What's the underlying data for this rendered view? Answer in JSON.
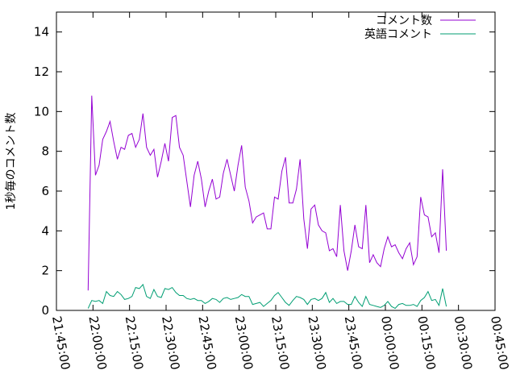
{
  "chart_data": {
    "type": "line",
    "ylabel": "1秒毎のコメント数",
    "xlabel": "",
    "title": "",
    "ylim": [
      0,
      15
    ],
    "xlim": [
      "21:45:00",
      "00:45:00"
    ],
    "yticks": [
      0,
      2,
      4,
      6,
      8,
      10,
      12,
      14
    ],
    "xticks": [
      "21:45:00",
      "22:00:00",
      "22:15:00",
      "22:30:00",
      "22:45:00",
      "23:00:00",
      "23:15:00",
      "23:30:00",
      "23:45:00",
      "00:00:00",
      "00:15:00",
      "00:30:00",
      "00:45:00"
    ],
    "grid": false,
    "legend_position": "top-right",
    "x_start": "21:58:00",
    "x_step_minutes": 1.5,
    "series": [
      {
        "name": "コメント数",
        "color": "#9400d3",
        "values": [
          1.0,
          10.8,
          6.8,
          7.3,
          8.6,
          9.0,
          9.5,
          8.5,
          7.6,
          8.2,
          8.1,
          8.8,
          8.9,
          8.2,
          8.6,
          9.9,
          8.2,
          7.8,
          8.1,
          6.7,
          7.5,
          8.4,
          7.5,
          9.7,
          9.8,
          8.2,
          7.8,
          6.5,
          5.2,
          6.8,
          7.5,
          6.6,
          5.2,
          6.0,
          6.6,
          5.6,
          5.7,
          6.9,
          7.6,
          6.8,
          6.0,
          7.3,
          8.3,
          6.2,
          5.5,
          4.4,
          4.7,
          4.8,
          4.9,
          4.1,
          4.1,
          5.7,
          5.6,
          7.0,
          7.7,
          5.4,
          5.4,
          6.1,
          7.6,
          4.6,
          3.1,
          5.1,
          5.3,
          4.3,
          4.0,
          3.9,
          3.0,
          3.1,
          2.7,
          5.3,
          3.0,
          2.0,
          3.0,
          4.3,
          3.2,
          3.1,
          5.3,
          2.4,
          2.8,
          2.4,
          2.2,
          3.1,
          3.7,
          3.2,
          3.3,
          2.9,
          2.6,
          3.1,
          3.4,
          2.3,
          2.7,
          5.7,
          4.8,
          4.7,
          3.7,
          3.9,
          2.9,
          7.1,
          3.0
        ]
      },
      {
        "name": "英語コメント",
        "color": "#009e73",
        "values": [
          0.1,
          0.5,
          0.45,
          0.5,
          0.35,
          0.95,
          0.75,
          0.7,
          0.95,
          0.8,
          0.55,
          0.6,
          0.7,
          1.15,
          1.1,
          1.3,
          0.7,
          0.6,
          1.05,
          0.7,
          0.65,
          1.1,
          1.05,
          1.15,
          0.9,
          0.75,
          0.75,
          0.6,
          0.55,
          0.6,
          0.5,
          0.5,
          0.35,
          0.45,
          0.6,
          0.55,
          0.4,
          0.6,
          0.65,
          0.55,
          0.6,
          0.65,
          0.8,
          0.7,
          0.7,
          0.3,
          0.35,
          0.4,
          0.2,
          0.35,
          0.5,
          0.75,
          0.9,
          0.65,
          0.4,
          0.25,
          0.5,
          0.7,
          0.65,
          0.55,
          0.3,
          0.55,
          0.6,
          0.5,
          0.6,
          0.9,
          0.4,
          0.6,
          0.35,
          0.45,
          0.45,
          0.3,
          0.3,
          0.7,
          0.4,
          0.2,
          0.7,
          0.3,
          0.25,
          0.2,
          0.15,
          0.25,
          0.45,
          0.2,
          0.1,
          0.3,
          0.35,
          0.25,
          0.25,
          0.3,
          0.2,
          0.5,
          0.65,
          0.95,
          0.5,
          0.55,
          0.25,
          1.1,
          0.2
        ]
      }
    ]
  }
}
